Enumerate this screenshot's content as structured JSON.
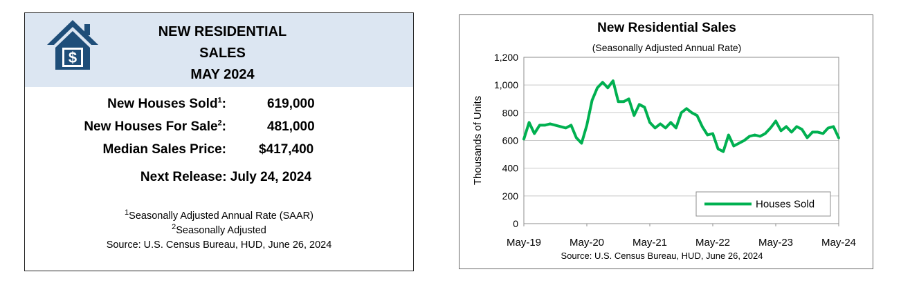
{
  "summary": {
    "title_lines": [
      "NEW RESIDENTIAL",
      "SALES",
      "MAY 2024"
    ],
    "stats": [
      {
        "label": "New Houses Sold",
        "sup": "1",
        "value": "619,000"
      },
      {
        "label": "New Houses For Sale",
        "sup": "2",
        "value": "481,000"
      },
      {
        "label": "Median Sales Price",
        "sup": "",
        "value": "$417,400"
      }
    ],
    "next_release": "Next Release:  July 24, 2024",
    "footnotes": [
      {
        "sup": "1",
        "text": "Seasonally Adjusted Annual Rate (SAAR)"
      },
      {
        "sup": "2",
        "text": "Seasonally Adjusted"
      }
    ],
    "source": "Source:  U.S. Census Bureau, HUD, June 26, 2024",
    "icon": "house-dollar-icon",
    "colors": {
      "header_bg": "#dce6f2",
      "icon": "#1f4e79"
    }
  },
  "chart_data": {
    "type": "line",
    "title": "New Residential Sales",
    "subtitle": "(Seasonally Adjusted Annual Rate)",
    "ylabel": "Thousands of Units",
    "xlabel": "",
    "source": "Source:  U.S. Census Bureau, HUD, June 26, 2024",
    "ylim": [
      0,
      1200
    ],
    "yticks": [
      "0",
      "200",
      "400",
      "600",
      "800",
      "1,000",
      "1,200"
    ],
    "ytick_values": [
      0,
      200,
      400,
      600,
      800,
      1000,
      1200
    ],
    "xticks": [
      "May-19",
      "May-20",
      "May-21",
      "May-22",
      "May-23",
      "May-24"
    ],
    "grid": "horizontal",
    "legend": "bottom-right",
    "series": [
      {
        "name": "Houses Sold",
        "color": "#00b050",
        "x": [
          "May-19",
          "Jun-19",
          "Jul-19",
          "Aug-19",
          "Sep-19",
          "Oct-19",
          "Nov-19",
          "Dec-19",
          "Jan-20",
          "Feb-20",
          "Mar-20",
          "Apr-20",
          "May-20",
          "Jun-20",
          "Jul-20",
          "Aug-20",
          "Sep-20",
          "Oct-20",
          "Nov-20",
          "Dec-20",
          "Jan-21",
          "Feb-21",
          "Mar-21",
          "Apr-21",
          "May-21",
          "Jun-21",
          "Jul-21",
          "Aug-21",
          "Sep-21",
          "Oct-21",
          "Nov-21",
          "Dec-21",
          "Jan-22",
          "Feb-22",
          "Mar-22",
          "Apr-22",
          "May-22",
          "Jun-22",
          "Jul-22",
          "Aug-22",
          "Sep-22",
          "Oct-22",
          "Nov-22",
          "Dec-22",
          "Jan-23",
          "Feb-23",
          "Mar-23",
          "Apr-23",
          "May-23",
          "Jun-23",
          "Jul-23",
          "Aug-23",
          "Sep-23",
          "Oct-23",
          "Nov-23",
          "Dec-23",
          "Jan-24",
          "Feb-24",
          "Mar-24",
          "Apr-24",
          "May-24"
        ],
        "values": [
          610,
          730,
          650,
          710,
          710,
          720,
          710,
          700,
          690,
          710,
          620,
          580,
          710,
          890,
          980,
          1020,
          980,
          1030,
          880,
          880,
          900,
          780,
          860,
          840,
          730,
          690,
          720,
          690,
          730,
          690,
          800,
          830,
          800,
          780,
          700,
          640,
          650,
          540,
          520,
          640,
          560,
          580,
          600,
          630,
          640,
          630,
          650,
          690,
          740,
          670,
          700,
          660,
          700,
          680,
          620,
          660,
          660,
          650,
          690,
          700,
          619
        ]
      }
    ]
  }
}
